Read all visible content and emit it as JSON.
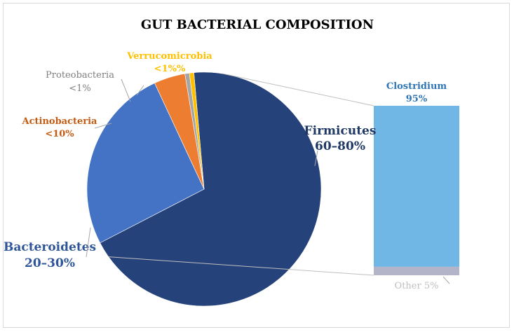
{
  "chart_data": {
    "type": "pie",
    "title": "GUT BACTERIAL COMPOSITION",
    "slices": [
      {
        "name": "Firmicutes",
        "range_label": "60–80%",
        "value": 67.0,
        "color": "#26427a",
        "label_color": "#1f3864"
      },
      {
        "name": "Bacteroidetes",
        "range_label": "20–30%",
        "value": 25.0,
        "color": "#4472c4",
        "label_color": "#2e5597"
      },
      {
        "name": "Actinobacteria",
        "range_label": "<10%",
        "value": 4.2,
        "color": "#ed7d31",
        "label_color": "#c55a11"
      },
      {
        "name": "Proteobacteria",
        "range_label": "<1%",
        "value": 0.6,
        "color": "#a5a5a5",
        "label_color": "#808080"
      },
      {
        "name": "Verrucomicrobia",
        "range_label": "<1%%",
        "value": 0.6,
        "color": "#ffc000",
        "label_color": "#ffc000"
      }
    ],
    "breakdown": {
      "of": "Firmicutes",
      "type": "stacked-bar",
      "segments": [
        {
          "name": "Clostridium",
          "label": "Clostridium",
          "value_label": "95%",
          "value": 95,
          "color": "#70b7e6",
          "label_color": "#2e75b6"
        },
        {
          "name": "Other",
          "label": "Other 5%",
          "value": 5,
          "color": "#b4b4c8",
          "label_color": "#bfbfbf"
        }
      ]
    }
  }
}
